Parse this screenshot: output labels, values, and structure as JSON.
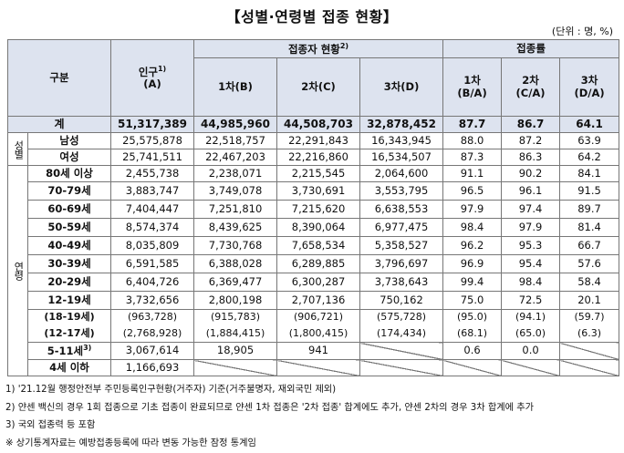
{
  "title": "【성별·연령별 접종 현황】",
  "unit": "(단위 : 명, %)",
  "headers": {
    "group": "구분",
    "pop_label": "인구",
    "pop_sup": "1)",
    "pop_sub": "(A)",
    "vaccinated": "접종자 현황",
    "vaccinated_sup": "2)",
    "dose1": "1차(B)",
    "dose2": "2차(C)",
    "dose3": "3차(D)",
    "rate": "접종률",
    "r1_top": "1차",
    "r1_bot": "(B/A)",
    "r2_top": "2차",
    "r2_bot": "(C/A)",
    "r3_top": "3차",
    "r3_bot": "(D/A)"
  },
  "side_labels": {
    "sex": "성별",
    "age": "연령"
  },
  "total": {
    "label": "계",
    "a": "51,317,389",
    "b": "44,985,960",
    "c": "44,508,703",
    "d": "32,878,452",
    "r1": "87.7",
    "r2": "86.7",
    "r3": "64.1"
  },
  "sex_rows": [
    {
      "label": "남성",
      "a": "25,575,878",
      "b": "22,518,757",
      "c": "22,291,843",
      "d": "16,343,945",
      "r1": "88.0",
      "r2": "87.2",
      "r3": "63.9"
    },
    {
      "label": "여성",
      "a": "25,741,511",
      "b": "22,467,203",
      "c": "22,216,860",
      "d": "16,534,507",
      "r1": "87.3",
      "r2": "86.3",
      "r3": "64.2"
    }
  ],
  "age_rows": [
    {
      "label": "80세 이상",
      "a": "2,455,738",
      "b": "2,238,071",
      "c": "2,215,545",
      "d": "2,064,600",
      "r1": "91.1",
      "r2": "90.2",
      "r3": "84.1"
    },
    {
      "label": "70-79세",
      "a": "3,883,747",
      "b": "3,749,078",
      "c": "3,730,691",
      "d": "3,553,795",
      "r1": "96.5",
      "r2": "96.1",
      "r3": "91.5"
    },
    {
      "label": "60-69세",
      "a": "7,404,447",
      "b": "7,251,810",
      "c": "7,215,620",
      "d": "6,638,553",
      "r1": "97.9",
      "r2": "97.4",
      "r3": "89.7"
    },
    {
      "label": "50-59세",
      "a": "8,574,374",
      "b": "8,439,625",
      "c": "8,390,064",
      "d": "6,977,475",
      "r1": "98.4",
      "r2": "97.9",
      "r3": "81.4"
    },
    {
      "label": "40-49세",
      "a": "8,035,809",
      "b": "7,730,768",
      "c": "7,658,534",
      "d": "5,358,527",
      "r1": "96.2",
      "r2": "95.3",
      "r3": "66.7"
    },
    {
      "label": "30-39세",
      "a": "6,591,585",
      "b": "6,388,028",
      "c": "6,289,885",
      "d": "3,796,697",
      "r1": "96.9",
      "r2": "95.4",
      "r3": "57.6"
    },
    {
      "label": "20-29세",
      "a": "6,404,726",
      "b": "6,369,477",
      "c": "6,300,287",
      "d": "3,738,643",
      "r1": "99.4",
      "r2": "98.4",
      "r3": "58.4"
    },
    {
      "label": "12-19세",
      "a": "3,732,656",
      "b": "2,800,198",
      "c": "2,707,136",
      "d": "750,162",
      "r1": "75.0",
      "r2": "72.5",
      "r3": "20.1"
    }
  ],
  "sub_rows": [
    {
      "label": "(18-19세)",
      "a": "(963,728)",
      "b": "(915,783)",
      "c": "(906,721)",
      "d": "(575,728)",
      "r1": "(95.0)",
      "r2": "(94.1)",
      "r3": "(59.7)"
    },
    {
      "label": "(12-17세)",
      "a": "(2,768,928)",
      "b": "(1,884,415)",
      "c": "(1,800,415)",
      "d": "(174,434)",
      "r1": "(68.1)",
      "r2": "(65.0)",
      "r3": "(6.3)"
    }
  ],
  "kids": {
    "label": "5-11세",
    "sup": "3)",
    "a": "3,067,614",
    "b": "18,905",
    "c": "941",
    "r1": "0.6",
    "r2": "0.0"
  },
  "infants": {
    "label": "4세 이하",
    "a": "1,166,693"
  },
  "notes": [
    "1) '21.12월 행정안전부 주민등록인구현황(거주자) 기준(거주불명자, 재외국민 제외)",
    "2) 얀센 백신의 경우 1회 접종으로 기초 접종이 완료되므로 얀센 1차 접종은 '2차 접종' 합계에도 추가, 얀센 2차의 경우 3차 합계에 추가",
    "3) 국외 접종력 등 포함",
    "※ 상기통계자료는 예방접종등록에 따라 변동 가능한 잠정 통계임"
  ]
}
